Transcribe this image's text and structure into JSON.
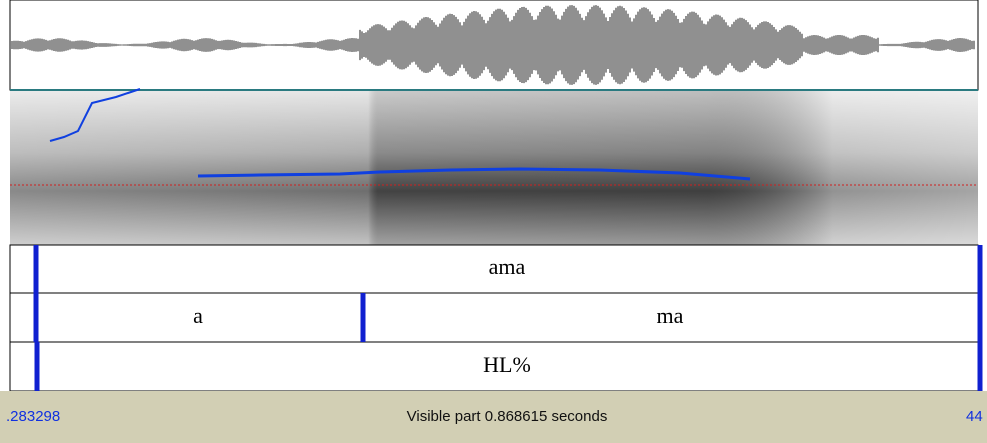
{
  "tiers": [
    {
      "intervals": [
        {
          "label": "ama"
        }
      ]
    },
    {
      "intervals": [
        {
          "label": "a"
        },
        {
          "label": "ma"
        }
      ]
    },
    {
      "intervals": [
        {
          "label": "HL%"
        }
      ]
    }
  ],
  "footer": {
    "start": ".283298",
    "visible": "Visible part 0.868615 seconds",
    "end": "44"
  }
}
